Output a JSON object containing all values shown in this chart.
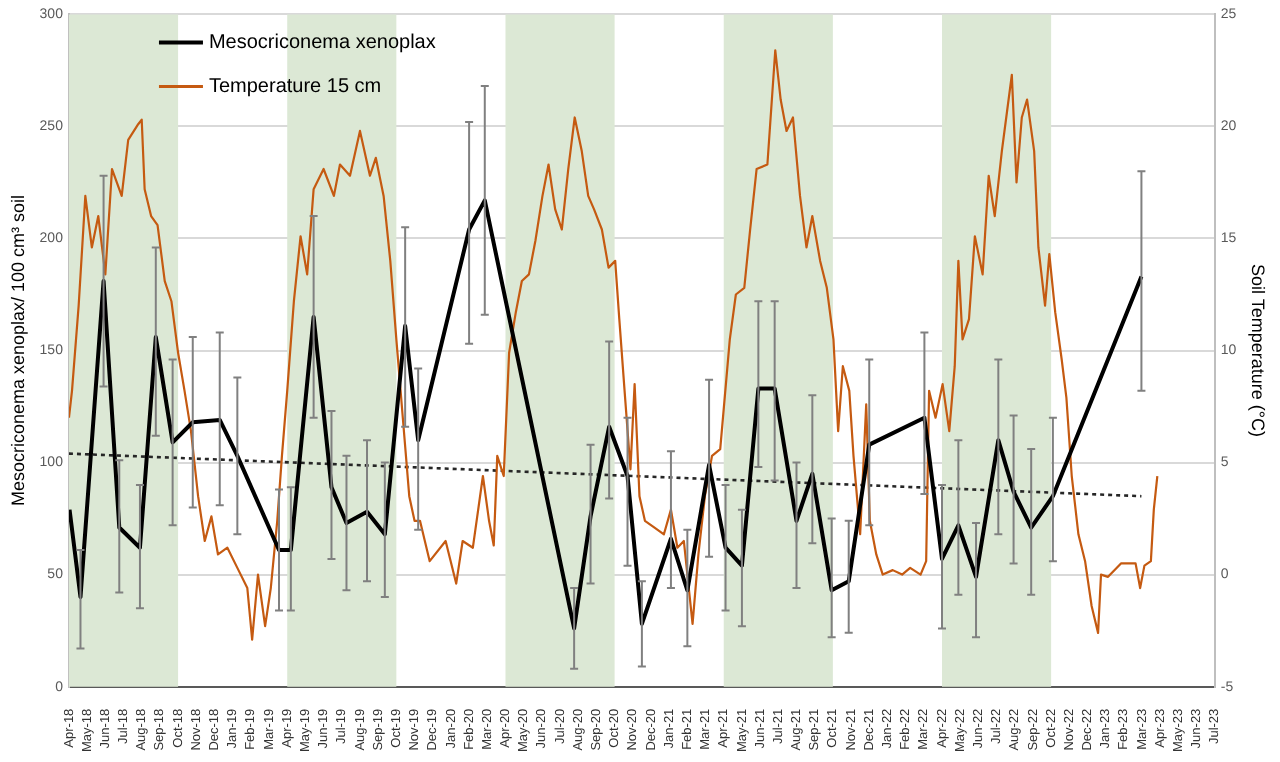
{
  "chart_data": {
    "type": "line",
    "ylabel": "Mesocriconema xenoplax/ 100 cm³ soil",
    "y2label": "Soil Temperature (°C)",
    "xlim": [
      "2018-04",
      "2023-07"
    ],
    "xticks": [
      {
        "value": "2018-04",
        "label": "Apr-18"
      },
      {
        "value": "2018-05",
        "label": "May-18"
      },
      {
        "value": "2018-06",
        "label": "Jun-18"
      },
      {
        "value": "2018-07",
        "label": "Jul-18"
      },
      {
        "value": "2018-08",
        "label": "Aug-18"
      },
      {
        "value": "2018-09",
        "label": "Sep-18"
      },
      {
        "value": "2018-10",
        "label": "Oct-18"
      },
      {
        "value": "2018-11",
        "label": "Nov-18"
      },
      {
        "value": "2018-12",
        "label": "Dec-18"
      },
      {
        "value": "2019-01",
        "label": "Jan-19"
      },
      {
        "value": "2019-02",
        "label": "Feb-19"
      },
      {
        "value": "2019-03",
        "label": "Mar-19"
      },
      {
        "value": "2019-04",
        "label": "Apr-19"
      },
      {
        "value": "2019-05",
        "label": "May-19"
      },
      {
        "value": "2019-06",
        "label": "Jun-19"
      },
      {
        "value": "2019-07",
        "label": "Jul-19"
      },
      {
        "value": "2019-08",
        "label": "Aug-19"
      },
      {
        "value": "2019-09",
        "label": "Sep-19"
      },
      {
        "value": "2019-10",
        "label": "Oct-19"
      },
      {
        "value": "2019-11",
        "label": "Nov-19"
      },
      {
        "value": "2019-12",
        "label": "Dec-19"
      },
      {
        "value": "2020-01",
        "label": "Jan-20"
      },
      {
        "value": "2020-02",
        "label": "Feb-20"
      },
      {
        "value": "2020-03",
        "label": "Mar-20"
      },
      {
        "value": "2020-04",
        "label": "Apr-20"
      },
      {
        "value": "2020-05",
        "label": "May-20"
      },
      {
        "value": "2020-06",
        "label": "Jun-20"
      },
      {
        "value": "2020-07",
        "label": "Jul-20"
      },
      {
        "value": "2020-08",
        "label": "Aug-20"
      },
      {
        "value": "2020-09",
        "label": "Sep-20"
      },
      {
        "value": "2020-10",
        "label": "Oct-20"
      },
      {
        "value": "2020-11",
        "label": "Nov-20"
      },
      {
        "value": "2020-12",
        "label": "Dec-20"
      },
      {
        "value": "2021-01",
        "label": "Jan-21"
      },
      {
        "value": "2021-02",
        "label": "Feb-21"
      },
      {
        "value": "2021-03",
        "label": "Mar-21"
      },
      {
        "value": "2021-04",
        "label": "Apr-21"
      },
      {
        "value": "2021-05",
        "label": "May-21"
      },
      {
        "value": "2021-06",
        "label": "Jun-21"
      },
      {
        "value": "2021-07",
        "label": "Jul-21"
      },
      {
        "value": "2021-08",
        "label": "Aug-21"
      },
      {
        "value": "2021-09",
        "label": "Sep-21"
      },
      {
        "value": "2021-10",
        "label": "Oct-21"
      },
      {
        "value": "2021-11",
        "label": "Nov-21"
      },
      {
        "value": "2021-12",
        "label": "Dec-21"
      },
      {
        "value": "2022-01",
        "label": "Jan-22"
      },
      {
        "value": "2022-02",
        "label": "Feb-22"
      },
      {
        "value": "2022-03",
        "label": "Mar-22"
      },
      {
        "value": "2022-04",
        "label": "Apr-22"
      },
      {
        "value": "2022-05",
        "label": "May-22"
      },
      {
        "value": "2022-06",
        "label": "Jun-22"
      },
      {
        "value": "2022-07",
        "label": "Jul-22"
      },
      {
        "value": "2022-08",
        "label": "Aug-22"
      },
      {
        "value": "2022-09",
        "label": "Sep-22"
      },
      {
        "value": "2022-10",
        "label": "Oct-22"
      },
      {
        "value": "2022-11",
        "label": "Nov-22"
      },
      {
        "value": "2022-12",
        "label": "Dec-22"
      },
      {
        "value": "2023-01",
        "label": "Jan-23"
      },
      {
        "value": "2023-02",
        "label": "Feb-23"
      },
      {
        "value": "2023-03",
        "label": "Mar-23"
      },
      {
        "value": "2023-04",
        "label": "Apr-23"
      },
      {
        "value": "2023-05",
        "label": "May-23"
      },
      {
        "value": "2023-06",
        "label": "Jun-23"
      },
      {
        "value": "2023-07",
        "label": "Jul-23"
      }
    ],
    "ylim": [
      0,
      300
    ],
    "yticks": [
      0,
      50,
      100,
      150,
      200,
      250,
      300
    ],
    "y2lim": [
      -5,
      25
    ],
    "y2ticks": [
      -5,
      0,
      5,
      10,
      15,
      20,
      25
    ],
    "grid": "y",
    "legend": "top left",
    "marker": "none",
    "bands": [
      {
        "axis": "x",
        "from": "2018-04",
        "to": "2018-10",
        "color": "#dce8d5"
      },
      {
        "axis": "x",
        "from": "2019-04",
        "to": "2019-10",
        "color": "#dce8d5"
      },
      {
        "axis": "x",
        "from": "2020-04",
        "to": "2020-10",
        "color": "#dce8d5"
      },
      {
        "axis": "x",
        "from": "2021-04",
        "to": "2021-10",
        "color": "#dce8d5"
      },
      {
        "axis": "x",
        "from": "2022-04",
        "to": "2022-10",
        "color": "#dce8d5"
      }
    ],
    "series": [
      {
        "name": "Mesocriconema xenoplax",
        "color": "#000000",
        "x": [
          "2018-04-02",
          "2018-04-20",
          "2018-05-29",
          "2018-06-24",
          "2018-07-29",
          "2018-08-25",
          "2018-09-22",
          "2018-10-26",
          "2018-12-10",
          "2019-01-09",
          "2019-03-18",
          "2019-04-07",
          "2019-05-15",
          "2019-06-14",
          "2019-07-09",
          "2019-08-13",
          "2019-09-12",
          "2019-10-16",
          "2019-11-07",
          "2020-02-01",
          "2020-02-26",
          "2020-07-25",
          "2020-08-22",
          "2020-09-22",
          "2020-10-23",
          "2020-11-16",
          "2021-01-04",
          "2021-02-01",
          "2021-03-07",
          "2021-04-04",
          "2021-05-01",
          "2021-05-29",
          "2021-06-25",
          "2021-08-01",
          "2021-08-28",
          "2021-09-29",
          "2021-10-28",
          "2021-12-01",
          "2022-03-02",
          "2022-04-01",
          "2022-04-28",
          "2022-05-28",
          "2022-07-04",
          "2022-07-30",
          "2022-08-29",
          "2022-10-04",
          "2023-02-28"
        ],
        "values": [
          79,
          40,
          181,
          71,
          62,
          156,
          109,
          118,
          119,
          103,
          61,
          61,
          165,
          89,
          73,
          78,
          68,
          161,
          110,
          204,
          217,
          26,
          76,
          116,
          94,
          28,
          66,
          43,
          99,
          62,
          54,
          133,
          133,
          74,
          95,
          43,
          47,
          108,
          120,
          57,
          72,
          49,
          110,
          87,
          71,
          85,
          183
        ],
        "errors": [
          null,
          [
            17,
            61
          ],
          [
            134,
            228
          ],
          [
            42,
            101
          ],
          [
            35,
            90
          ],
          [
            112,
            196
          ],
          [
            72,
            146
          ],
          [
            80,
            156
          ],
          [
            81,
            158
          ],
          [
            68,
            138
          ],
          [
            34,
            88
          ],
          [
            34,
            89
          ],
          [
            120,
            210
          ],
          [
            57,
            123
          ],
          [
            43,
            103
          ],
          [
            47,
            110
          ],
          [
            40,
            100
          ],
          [
            116,
            205
          ],
          [
            70,
            142
          ],
          [
            153,
            252
          ],
          [
            166,
            268
          ],
          [
            8,
            44
          ],
          [
            46,
            108
          ],
          [
            84,
            154
          ],
          [
            54,
            120
          ],
          [
            9,
            47
          ],
          [
            44,
            105
          ],
          [
            18,
            70
          ],
          [
            58,
            137
          ],
          [
            34,
            90
          ],
          [
            27,
            79
          ],
          [
            98,
            172
          ],
          [
            92,
            172
          ],
          [
            44,
            100
          ],
          [
            64,
            130
          ],
          [
            22,
            75
          ],
          [
            24,
            74
          ],
          [
            72,
            146
          ],
          [
            86,
            158
          ],
          [
            26,
            90
          ],
          [
            41,
            110
          ],
          [
            22,
            73
          ],
          [
            68,
            146
          ],
          [
            55,
            121
          ],
          [
            41,
            106
          ],
          [
            56,
            120
          ],
          [
            132,
            230
          ]
        ]
      },
      {
        "name": "Temperature 15 cm",
        "color": "#c55a11",
        "axis": "y2",
        "x": [
          "2018-04-01",
          "2018-04-06",
          "2018-04-17",
          "2018-04-28",
          "2018-05-09",
          "2018-05-20",
          "2018-06-01",
          "2018-06-12",
          "2018-06-28",
          "2018-07-09",
          "2018-07-26",
          "2018-08-01",
          "2018-08-06",
          "2018-08-17",
          "2018-08-28",
          "2018-09-09",
          "2018-09-20",
          "2018-10-01",
          "2018-10-12",
          "2018-10-23",
          "2018-11-04",
          "2018-11-15",
          "2018-11-26",
          "2018-12-07",
          "2018-12-23",
          "2019-01-09",
          "2019-01-26",
          "2019-02-03",
          "2019-02-12",
          "2019-02-23",
          "2019-03-04",
          "2019-03-15",
          "2019-03-23",
          "2019-04-01",
          "2019-04-12",
          "2019-04-23",
          "2019-05-04",
          "2019-05-15",
          "2019-06-01",
          "2019-06-18",
          "2019-06-28",
          "2019-07-15",
          "2019-08-01",
          "2019-08-18",
          "2019-08-28",
          "2019-09-10",
          "2019-09-21",
          "2019-10-01",
          "2019-10-12",
          "2019-10-23",
          "2019-11-01",
          "2019-11-10",
          "2019-11-26",
          "2019-12-23",
          "2020-01-10",
          "2020-01-21",
          "2020-02-07",
          "2020-02-23",
          "2020-03-04",
          "2020-03-12",
          "2020-03-18",
          "2020-03-29",
          "2020-04-07",
          "2020-04-18",
          "2020-04-28",
          "2020-05-10",
          "2020-05-21",
          "2020-06-02",
          "2020-06-12",
          "2020-06-23",
          "2020-07-04",
          "2020-07-15",
          "2020-07-26",
          "2020-08-07",
          "2020-08-18",
          "2020-08-28",
          "2020-09-10",
          "2020-09-21",
          "2020-10-02",
          "2020-10-09",
          "2020-10-18",
          "2020-10-28",
          "2020-11-04",
          "2020-11-12",
          "2020-11-21",
          "2020-12-07",
          "2020-12-23",
          "2021-01-04",
          "2021-01-15",
          "2021-01-26",
          "2021-02-09",
          "2021-02-18",
          "2021-02-28",
          "2021-03-12",
          "2021-03-26",
          "2021-04-11",
          "2021-04-21",
          "2021-05-05",
          "2021-05-15",
          "2021-05-26",
          "2021-06-13",
          "2021-06-26",
          "2021-07-05",
          "2021-07-15",
          "2021-07-26",
          "2021-08-07",
          "2021-08-18",
          "2021-08-28",
          "2021-09-10",
          "2021-09-21",
          "2021-10-02",
          "2021-10-10",
          "2021-10-18",
          "2021-10-29",
          "2021-11-05",
          "2021-11-16",
          "2021-11-26",
          "2021-12-02",
          "2021-12-13",
          "2021-12-24",
          "2022-01-10",
          "2022-01-26",
          "2022-02-08",
          "2022-02-24",
          "2022-03-05",
          "2022-03-10",
          "2022-03-21",
          "2022-04-02",
          "2022-04-13",
          "2022-04-22",
          "2022-04-28",
          "2022-05-05",
          "2022-05-16",
          "2022-05-26",
          "2022-06-08",
          "2022-06-18",
          "2022-06-28",
          "2022-07-10",
          "2022-07-19",
          "2022-07-27",
          "2022-08-04",
          "2022-08-13",
          "2022-08-22",
          "2022-09-03",
          "2022-09-10",
          "2022-09-21",
          "2022-09-28",
          "2022-10-08",
          "2022-10-19",
          "2022-10-27",
          "2022-11-05",
          "2022-11-16",
          "2022-11-27",
          "2022-12-08",
          "2022-12-19",
          "2022-12-24",
          "2023-01-05",
          "2023-01-27",
          "2023-02-19",
          "2023-02-26",
          "2023-03-05",
          "2023-03-16",
          "2023-03-21",
          "2023-03-27"
        ],
        "values": [
          7.0,
          8.2,
          12.0,
          16.9,
          14.6,
          16.0,
          13.4,
          18.1,
          16.9,
          19.4,
          20.1,
          20.3,
          17.2,
          16.0,
          15.6,
          13.1,
          12.2,
          9.9,
          8.2,
          6.4,
          3.5,
          1.5,
          2.6,
          0.9,
          1.2,
          0.3,
          -0.6,
          -2.9,
          0.0,
          -2.3,
          -0.6,
          2.4,
          5.3,
          8.2,
          12.2,
          15.1,
          13.4,
          17.2,
          18.1,
          16.9,
          18.3,
          17.8,
          19.8,
          17.8,
          18.6,
          16.9,
          14.0,
          10.5,
          7.0,
          3.5,
          2.4,
          2.4,
          0.6,
          1.5,
          -0.4,
          1.5,
          1.2,
          4.4,
          2.4,
          1.3,
          5.3,
          4.4,
          9.9,
          11.7,
          13.1,
          13.4,
          14.9,
          16.9,
          18.3,
          16.3,
          15.4,
          18.1,
          20.4,
          18.9,
          16.9,
          16.3,
          15.4,
          13.7,
          14.0,
          11.4,
          8.2,
          4.7,
          8.5,
          3.5,
          2.4,
          2.1,
          1.8,
          2.9,
          1.2,
          1.5,
          -2.2,
          0.9,
          3.5,
          5.3,
          5.6,
          10.5,
          12.5,
          12.8,
          15.4,
          18.1,
          18.3,
          23.4,
          21.2,
          19.8,
          20.4,
          16.9,
          14.6,
          16.0,
          14.0,
          12.8,
          10.5,
          6.4,
          9.3,
          8.2,
          5.3,
          1.8,
          7.6,
          2.4,
          0.9,
          0.0,
          0.2,
          0.0,
          0.3,
          0.0,
          0.6,
          8.2,
          7.0,
          8.5,
          6.4,
          9.3,
          14.0,
          10.5,
          11.4,
          15.1,
          13.4,
          17.8,
          16.0,
          18.9,
          20.7,
          22.3,
          17.5,
          20.4,
          21.2,
          18.9,
          14.6,
          12.0,
          14.3,
          11.7,
          9.6,
          7.9,
          4.4,
          1.8,
          0.6,
          -1.4,
          -2.6,
          0.0,
          -0.1,
          0.5,
          0.5,
          -0.6,
          0.4,
          0.6,
          2.9,
          4.4
        ]
      },
      {
        "type": "line",
        "color": "#262626",
        "line_style": "dotted",
        "x": [
          "2018-04-01",
          "2023-02-28"
        ],
        "values": [
          104,
          85
        ]
      }
    ]
  }
}
